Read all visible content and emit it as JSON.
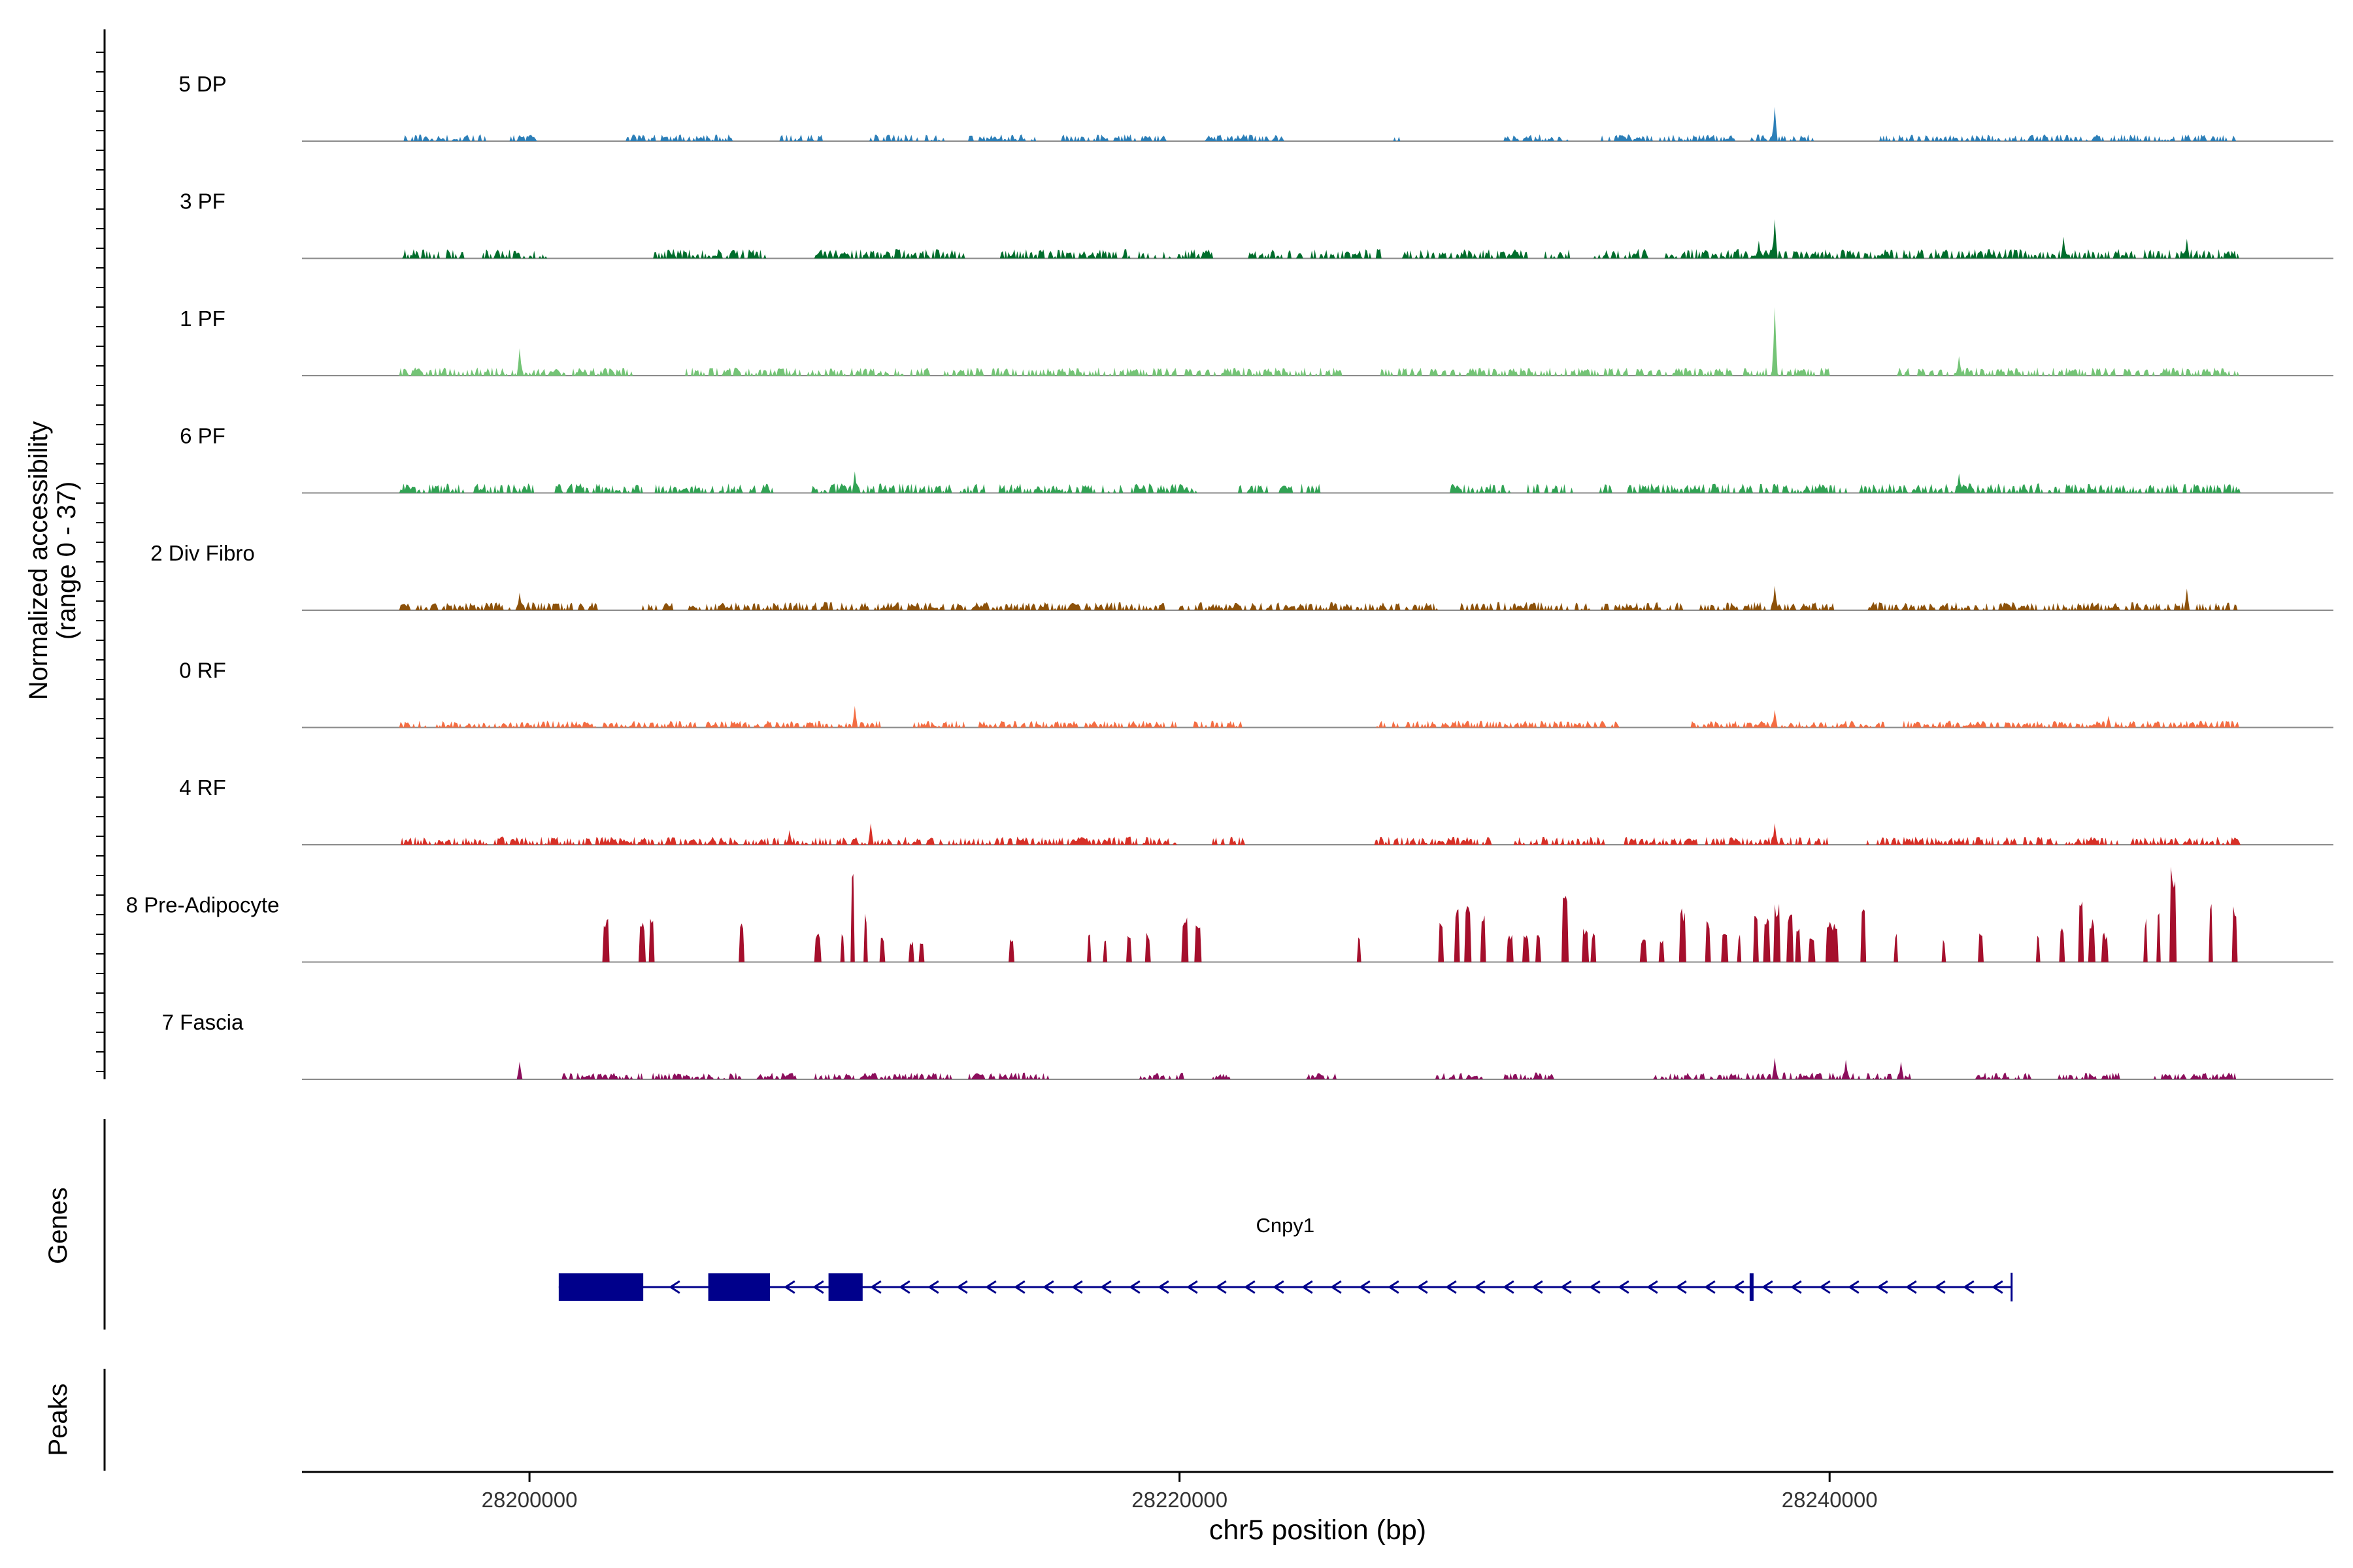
{
  "chart_data": {
    "type": "area",
    "title": "",
    "region": {
      "chromosome": "chr5",
      "start": 28193000,
      "end": 28255500
    },
    "xlabel": "chr5 position (bp)",
    "x_ticks": [
      28200000,
      28220000,
      28240000
    ],
    "x_tick_labels": [
      "28200000",
      "28220000",
      "28240000"
    ],
    "ylabel_line1": "Normalized accessibility",
    "ylabel_line2": "(range 0 - 37)",
    "ylim": [
      0,
      37
    ],
    "coverage_tracks": [
      {
        "name": "5 DP",
        "color": "#2c7fb8",
        "amp": 0.05,
        "seed": 11,
        "extent": [
          28196000,
          28252600
        ],
        "regions": [
          [
            28196100,
            28198700
          ],
          [
            28199400,
            28200200
          ],
          [
            28203000,
            28206300
          ],
          [
            28207600,
            28209000
          ],
          [
            28210500,
            28212800
          ],
          [
            28213500,
            28215600
          ],
          [
            28216300,
            28219700
          ],
          [
            28220800,
            28223200
          ],
          [
            28226600,
            28226800
          ],
          [
            28230000,
            28232000
          ],
          [
            28233000,
            28237100
          ],
          [
            28237400,
            28239700
          ],
          [
            28241500,
            28248500
          ],
          [
            28248600,
            28253000
          ]
        ],
        "spikes": [
          [
            28238300,
            0.35
          ]
        ]
      },
      {
        "name": "3 PF",
        "color": "#006d2c",
        "amp": 0.07,
        "seed": 23,
        "extent": [
          28196000,
          28252600
        ],
        "regions": [
          [
            28196000,
            28198000
          ],
          [
            28198500,
            28200500
          ],
          [
            28203800,
            28207300
          ],
          [
            28208800,
            28213400
          ],
          [
            28214500,
            28221000
          ],
          [
            28222100,
            28226300
          ],
          [
            28226800,
            28230700
          ],
          [
            28231200,
            28232000
          ],
          [
            28232700,
            28234400
          ],
          [
            28234800,
            28252600
          ]
        ],
        "spikes": [
          [
            28238300,
            0.4
          ],
          [
            28237800,
            0.18
          ],
          [
            28247200,
            0.22
          ],
          [
            28251000,
            0.2
          ]
        ]
      },
      {
        "name": "1 PF",
        "color": "#74c476",
        "amp": 0.06,
        "seed": 37,
        "extent": [
          28196000,
          28252600
        ],
        "regions": [
          [
            28196000,
            28203200
          ],
          [
            28204800,
            28212300
          ],
          [
            28212700,
            28225000
          ],
          [
            28226200,
            28237000
          ],
          [
            28237300,
            28240000
          ],
          [
            28242000,
            28252600
          ]
        ],
        "spikes": [
          [
            28238300,
            0.7
          ],
          [
            28199700,
            0.28
          ],
          [
            28244000,
            0.2
          ]
        ]
      },
      {
        "name": "6 PF",
        "color": "#31a354",
        "amp": 0.07,
        "seed": 51,
        "extent": [
          28196000,
          28252600
        ],
        "regions": [
          [
            28196000,
            28198000
          ],
          [
            28198300,
            28200300
          ],
          [
            28200800,
            28203500
          ],
          [
            28203800,
            28207500
          ],
          [
            28208700,
            28214100
          ],
          [
            28214400,
            28216700
          ],
          [
            28216800,
            28220500
          ],
          [
            28221800,
            28222700
          ],
          [
            28223000,
            28224300
          ],
          [
            28228200,
            28230200
          ],
          [
            28230700,
            28232200
          ],
          [
            28232800,
            28233300
          ],
          [
            28233700,
            28252600
          ]
        ],
        "spikes": [
          [
            28210000,
            0.22
          ],
          [
            28244000,
            0.2
          ]
        ]
      },
      {
        "name": "2 Div Fibro",
        "color": "#8c510a",
        "amp": 0.06,
        "seed": 67,
        "extent": [
          28196000,
          28252600
        ],
        "regions": [
          [
            28196000,
            28202300
          ],
          [
            28203400,
            28204400
          ],
          [
            28204900,
            28219600
          ],
          [
            28220000,
            28228000
          ],
          [
            28228600,
            28232700
          ],
          [
            28233000,
            28235500
          ],
          [
            28236000,
            28240100
          ],
          [
            28241200,
            28252600
          ]
        ],
        "spikes": [
          [
            28238300,
            0.25
          ],
          [
            28251000,
            0.22
          ],
          [
            28199700,
            0.18
          ]
        ]
      },
      {
        "name": "0 RF",
        "color": "#f46d43",
        "amp": 0.05,
        "seed": 79,
        "extent": [
          28196000,
          28252600
        ],
        "regions": [
          [
            28196000,
            28210800
          ],
          [
            28211800,
            28213400
          ],
          [
            28213800,
            28219900
          ],
          [
            28220400,
            28221900
          ],
          [
            28226000,
            28233600
          ],
          [
            28235600,
            28241700
          ],
          [
            28242200,
            28252600
          ]
        ],
        "spikes": [
          [
            28210000,
            0.22
          ],
          [
            28238300,
            0.18
          ],
          [
            28248600,
            0.12
          ]
        ]
      },
      {
        "name": "4 RF",
        "color": "#d73027",
        "amp": 0.06,
        "seed": 91,
        "extent": [
          28196000,
          28252600
        ],
        "regions": [
          [
            28196000,
            28220000
          ],
          [
            28221000,
            28222000
          ],
          [
            28226000,
            28229600
          ],
          [
            28230300,
            28233100
          ],
          [
            28233700,
            28240000
          ],
          [
            28241000,
            28247000
          ],
          [
            28247200,
            28252600
          ]
        ],
        "spikes": [
          [
            28210500,
            0.22
          ],
          [
            28208000,
            0.15
          ],
          [
            28238300,
            0.22
          ]
        ]
      },
      {
        "name": "8 Pre-Adipocyte",
        "color": "#a50f2c",
        "amp": 0.0,
        "seed": 103,
        "extent": [
          28201000,
          28252500
        ],
        "regions": [],
        "spikes": [
          [
            28202300,
            0.45
          ],
          [
            28203400,
            0.42
          ],
          [
            28203700,
            0.45
          ],
          [
            28206500,
            0.45
          ],
          [
            28208800,
            0.3
          ],
          [
            28209600,
            0.3
          ],
          [
            28209900,
            1.0
          ],
          [
            28210300,
            0.5
          ],
          [
            28210800,
            0.25
          ],
          [
            28211700,
            0.22
          ],
          [
            28212000,
            0.22
          ],
          [
            28214800,
            0.25
          ],
          [
            28217200,
            0.3
          ],
          [
            28217700,
            0.22
          ],
          [
            28218400,
            0.3
          ],
          [
            28219000,
            0.3
          ],
          [
            28220100,
            0.48
          ],
          [
            28220500,
            0.4
          ],
          [
            28225500,
            0.3
          ],
          [
            28228000,
            0.4
          ],
          [
            28228500,
            0.55
          ],
          [
            28228800,
            0.65
          ],
          [
            28229300,
            0.5
          ],
          [
            28230100,
            0.3
          ],
          [
            28230600,
            0.3
          ],
          [
            28231000,
            0.3
          ],
          [
            28231800,
            0.7
          ],
          [
            28232400,
            0.35
          ],
          [
            28232700,
            0.3
          ],
          [
            28234200,
            0.25
          ],
          [
            28234800,
            0.25
          ],
          [
            28235400,
            0.55
          ],
          [
            28236200,
            0.45
          ],
          [
            28236700,
            0.35
          ],
          [
            28237200,
            0.3
          ],
          [
            28237700,
            0.55
          ],
          [
            28238000,
            0.45
          ],
          [
            28238300,
            0.6
          ],
          [
            28238700,
            0.5
          ],
          [
            28239000,
            0.35
          ],
          [
            28239400,
            0.25
          ],
          [
            28239900,
            0.45
          ],
          [
            28240100,
            0.4
          ],
          [
            28241000,
            0.6
          ],
          [
            28242000,
            0.3
          ],
          [
            28243500,
            0.25
          ],
          [
            28244600,
            0.3
          ],
          [
            28246400,
            0.3
          ],
          [
            28247100,
            0.35
          ],
          [
            28247700,
            0.65
          ],
          [
            28248000,
            0.45
          ],
          [
            28248400,
            0.3
          ],
          [
            28249700,
            0.45
          ],
          [
            28250100,
            0.55
          ],
          [
            28250500,
            1.0
          ],
          [
            28251700,
            0.7
          ],
          [
            28252400,
            0.6
          ]
        ]
      },
      {
        "name": "7 Fascia",
        "color": "#8c0f5c",
        "amp": 0.05,
        "seed": 127,
        "extent": [
          28196000,
          28252600
        ],
        "regions": [
          [
            28201000,
            28203500
          ],
          [
            28203800,
            28206500
          ],
          [
            28207000,
            28208200
          ],
          [
            28208800,
            28213000
          ],
          [
            28213500,
            28216000
          ],
          [
            28218800,
            28220200
          ],
          [
            28221000,
            28221600
          ],
          [
            28223900,
            28224800
          ],
          [
            28227900,
            28229300
          ],
          [
            28230000,
            28231500
          ],
          [
            28234600,
            28239800
          ],
          [
            28240000,
            28242500
          ],
          [
            28244500,
            28246200
          ],
          [
            28247000,
            28249000
          ],
          [
            28250000,
            28252500
          ]
        ],
        "spikes": [
          [
            28238300,
            0.22
          ],
          [
            28240500,
            0.2
          ],
          [
            28242200,
            0.18
          ],
          [
            28199700,
            0.18
          ]
        ]
      }
    ],
    "genes_label": "Genes",
    "peaks_label": "Peaks",
    "gene": {
      "name": "Cnpy1",
      "color": "#00008b",
      "strand": "-",
      "start": 28200900,
      "end": 28245600,
      "exons": [
        [
          28200900,
          28203500
        ],
        [
          28205500,
          28207400
        ],
        [
          28209200,
          28210250
        ],
        [
          28237540,
          28237640
        ]
      ]
    }
  }
}
